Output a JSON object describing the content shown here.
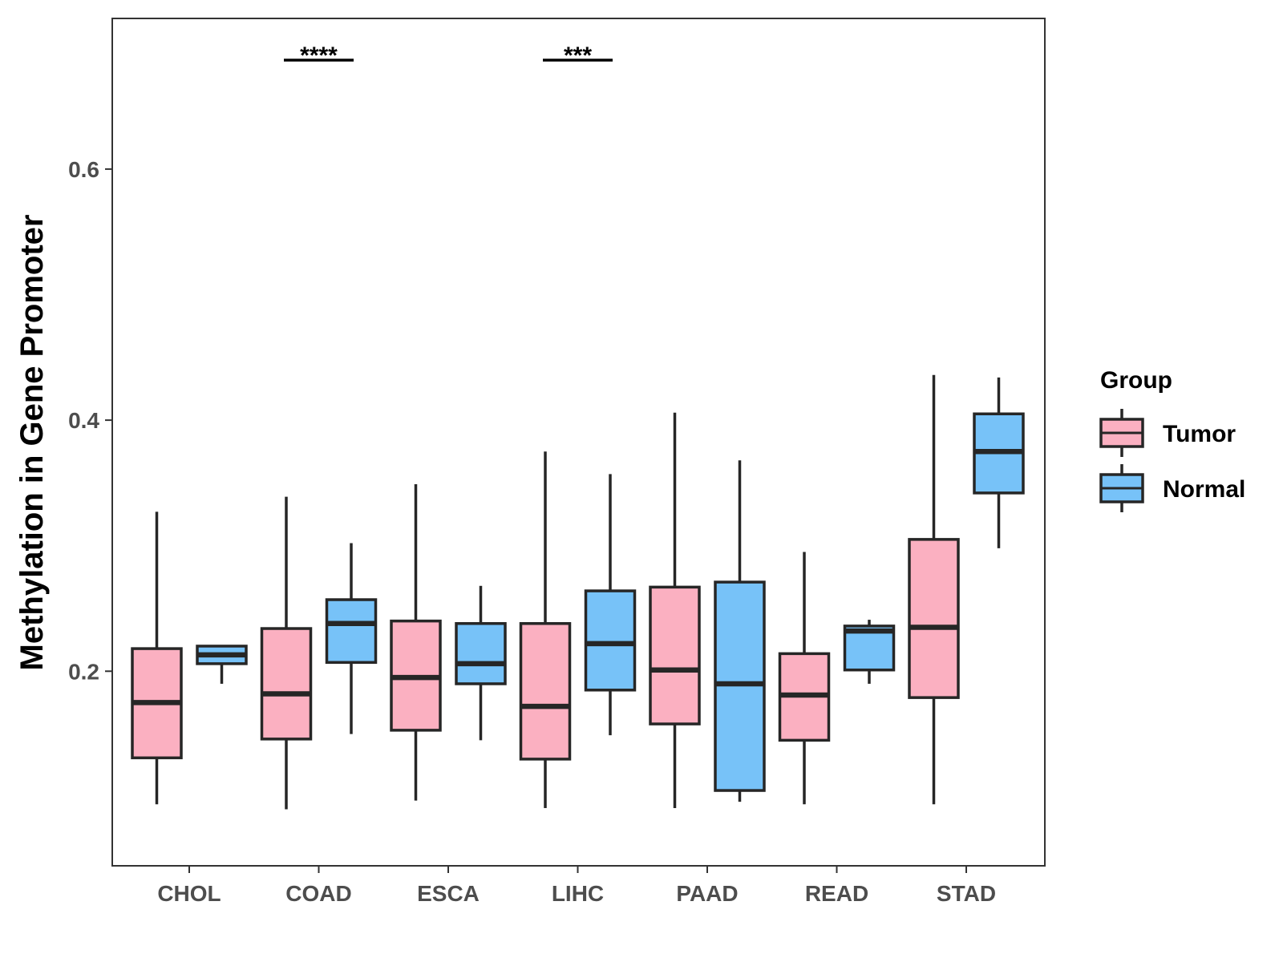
{
  "chart_data": {
    "type": "boxplot",
    "title": "",
    "xlabel": "",
    "ylabel": "Methylation in Gene Promoter",
    "ylim": [
      0.045,
      0.72
    ],
    "yticks": [
      0.2,
      0.4,
      0.6
    ],
    "ytick_labels": [
      "0.2",
      "0.4",
      "0.6"
    ],
    "categories": [
      "CHOL",
      "COAD",
      "ESCA",
      "LIHC",
      "PAAD",
      "READ",
      "STAD"
    ],
    "legend": {
      "title": "Group",
      "position": "right",
      "entries": [
        {
          "name": "Tumor",
          "color": "#FBB0C1"
        },
        {
          "name": "Normal",
          "color": "#77C2F8"
        }
      ]
    },
    "series": [
      {
        "name": "Tumor",
        "color": "#FBB0C1",
        "boxes": [
          {
            "category": "CHOL",
            "min": 0.094,
            "q1": 0.131,
            "median": 0.175,
            "q3": 0.218,
            "max": 0.327
          },
          {
            "category": "COAD",
            "min": 0.09,
            "q1": 0.146,
            "median": 0.182,
            "q3": 0.234,
            "max": 0.339
          },
          {
            "category": "ESCA",
            "min": 0.097,
            "q1": 0.153,
            "median": 0.195,
            "q3": 0.24,
            "max": 0.349
          },
          {
            "category": "LIHC",
            "min": 0.091,
            "q1": 0.13,
            "median": 0.172,
            "q3": 0.238,
            "max": 0.375
          },
          {
            "category": "PAAD",
            "min": 0.091,
            "q1": 0.158,
            "median": 0.201,
            "q3": 0.267,
            "max": 0.406
          },
          {
            "category": "READ",
            "min": 0.094,
            "q1": 0.145,
            "median": 0.181,
            "q3": 0.214,
            "max": 0.295
          },
          {
            "category": "STAD",
            "min": 0.094,
            "q1": 0.179,
            "median": 0.235,
            "q3": 0.305,
            "max": 0.436
          }
        ]
      },
      {
        "name": "Normal",
        "color": "#77C2F8",
        "boxes": [
          {
            "category": "CHOL",
            "min": 0.19,
            "q1": 0.206,
            "median": 0.213,
            "q3": 0.22,
            "max": 0.22
          },
          {
            "category": "COAD",
            "min": 0.15,
            "q1": 0.207,
            "median": 0.238,
            "q3": 0.257,
            "max": 0.302
          },
          {
            "category": "ESCA",
            "min": 0.145,
            "q1": 0.19,
            "median": 0.206,
            "q3": 0.238,
            "max": 0.268
          },
          {
            "category": "LIHC",
            "min": 0.149,
            "q1": 0.185,
            "median": 0.222,
            "q3": 0.264,
            "max": 0.357
          },
          {
            "category": "PAAD",
            "min": 0.096,
            "q1": 0.105,
            "median": 0.19,
            "q3": 0.271,
            "max": 0.368
          },
          {
            "category": "READ",
            "min": 0.19,
            "q1": 0.201,
            "median": 0.232,
            "q3": 0.236,
            "max": 0.241
          },
          {
            "category": "STAD",
            "min": 0.298,
            "q1": 0.342,
            "median": 0.375,
            "q3": 0.405,
            "max": 0.434
          }
        ]
      }
    ],
    "annotations": [
      {
        "category": "COAD",
        "label": "****"
      },
      {
        "category": "LIHC",
        "label": "***"
      }
    ],
    "grid": false
  }
}
